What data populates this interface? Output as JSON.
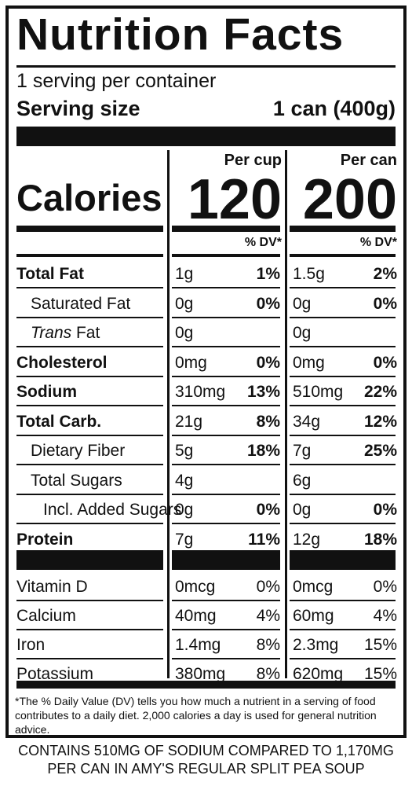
{
  "title": "Nutrition Facts",
  "servings_per_container": "1 serving per container",
  "serving_size_label": "Serving size",
  "serving_size_value": "1 can (400g)",
  "calories_label": "Calories",
  "col_cup": {
    "header": "Per cup",
    "calories": "120",
    "dv_header": "% DV*"
  },
  "col_can": {
    "header": "Per can",
    "calories": "200",
    "dv_header": "% DV*"
  },
  "nutrients": [
    {
      "label": "Total Fat",
      "bold": true,
      "indent": 0,
      "cup_amt": "1g",
      "cup_dv": "1%",
      "can_amt": "1.5g",
      "can_dv": "2%"
    },
    {
      "label": "Saturated Fat",
      "bold": false,
      "indent": 1,
      "cup_amt": "0g",
      "cup_dv": "0%",
      "can_amt": "0g",
      "can_dv": "0%"
    },
    {
      "label_italic": "Trans",
      "label": " Fat",
      "bold": false,
      "indent": 1,
      "cup_amt": "0g",
      "cup_dv": "",
      "can_amt": "0g",
      "can_dv": ""
    },
    {
      "label": "Cholesterol",
      "bold": true,
      "indent": 0,
      "cup_amt": "0mg",
      "cup_dv": "0%",
      "can_amt": "0mg",
      "can_dv": "0%"
    },
    {
      "label": "Sodium",
      "bold": true,
      "indent": 0,
      "cup_amt": "310mg",
      "cup_dv": "13%",
      "can_amt": "510mg",
      "can_dv": "22%"
    },
    {
      "label": "Total Carb.",
      "bold": true,
      "indent": 0,
      "cup_amt": "21g",
      "cup_dv": "8%",
      "can_amt": "34g",
      "can_dv": "12%"
    },
    {
      "label": "Dietary Fiber",
      "bold": false,
      "indent": 1,
      "cup_amt": "5g",
      "cup_dv": "18%",
      "can_amt": "7g",
      "can_dv": "25%"
    },
    {
      "label": "Total Sugars",
      "bold": false,
      "indent": 1,
      "cup_amt": "4g",
      "cup_dv": "",
      "can_amt": "6g",
      "can_dv": ""
    },
    {
      "label": "Incl. Added Sugars",
      "bold": false,
      "indent": 2,
      "cup_amt": "0g",
      "cup_dv": "0%",
      "can_amt": "0g",
      "can_dv": "0%"
    },
    {
      "label": "Protein",
      "bold": true,
      "indent": 0,
      "cup_amt": "7g",
      "cup_dv": "11%",
      "can_amt": "12g",
      "can_dv": "18%"
    }
  ],
  "vitamins": [
    {
      "label": "Vitamin D",
      "cup_amt": "0mcg",
      "cup_dv": "0%",
      "can_amt": "0mcg",
      "can_dv": "0%"
    },
    {
      "label": "Calcium",
      "cup_amt": "40mg",
      "cup_dv": "4%",
      "can_amt": "60mg",
      "can_dv": "4%"
    },
    {
      "label": "Iron",
      "cup_amt": "1.4mg",
      "cup_dv": "8%",
      "can_amt": "2.3mg",
      "can_dv": "15%"
    },
    {
      "label": "Potassium",
      "cup_amt": "380mg",
      "cup_dv": "8%",
      "can_amt": "620mg",
      "can_dv": "15%"
    }
  ],
  "footnote": "*The % Daily Value (DV) tells you how much a nutrient in a serving of food contributes to a daily diet. 2,000 calories a day is used for general nutrition advice.",
  "contains_line1": "CONTAINS 510MG OF SODIUM COMPARED TO 1,170MG",
  "contains_line2": "PER CAN IN AMY'S REGULAR SPLIT PEA SOUP"
}
